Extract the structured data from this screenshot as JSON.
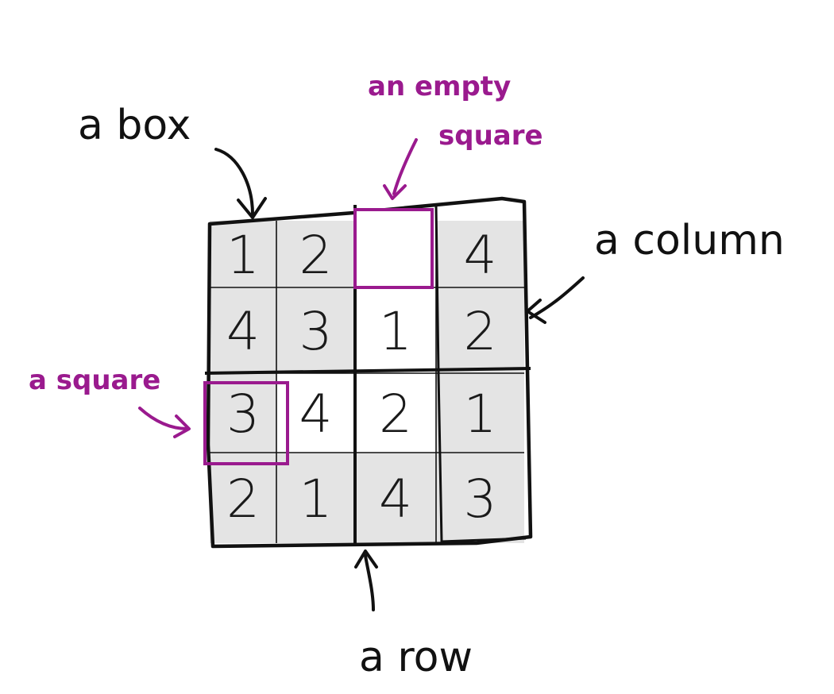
{
  "colors": {
    "ink": "#111111",
    "accent": "#9a1a8e",
    "shade": "#e4e4e4",
    "blank": "#ffffff"
  },
  "grid": {
    "rows": [
      [
        "1",
        "2",
        "",
        "4"
      ],
      [
        "4",
        "3",
        "1",
        "2"
      ],
      [
        "3",
        "4",
        "2",
        "1"
      ],
      [
        "2",
        "1",
        "4",
        "3"
      ]
    ],
    "shaded": [
      [
        true,
        true,
        false,
        true
      ],
      [
        true,
        true,
        false,
        true
      ],
      [
        true,
        false,
        false,
        true
      ],
      [
        true,
        true,
        true,
        true
      ]
    ]
  },
  "labels": {
    "box": "a box",
    "empty_square_line1": "an empty",
    "empty_square_line2": "square",
    "column": "a column",
    "square": "a square",
    "row": "a row"
  }
}
